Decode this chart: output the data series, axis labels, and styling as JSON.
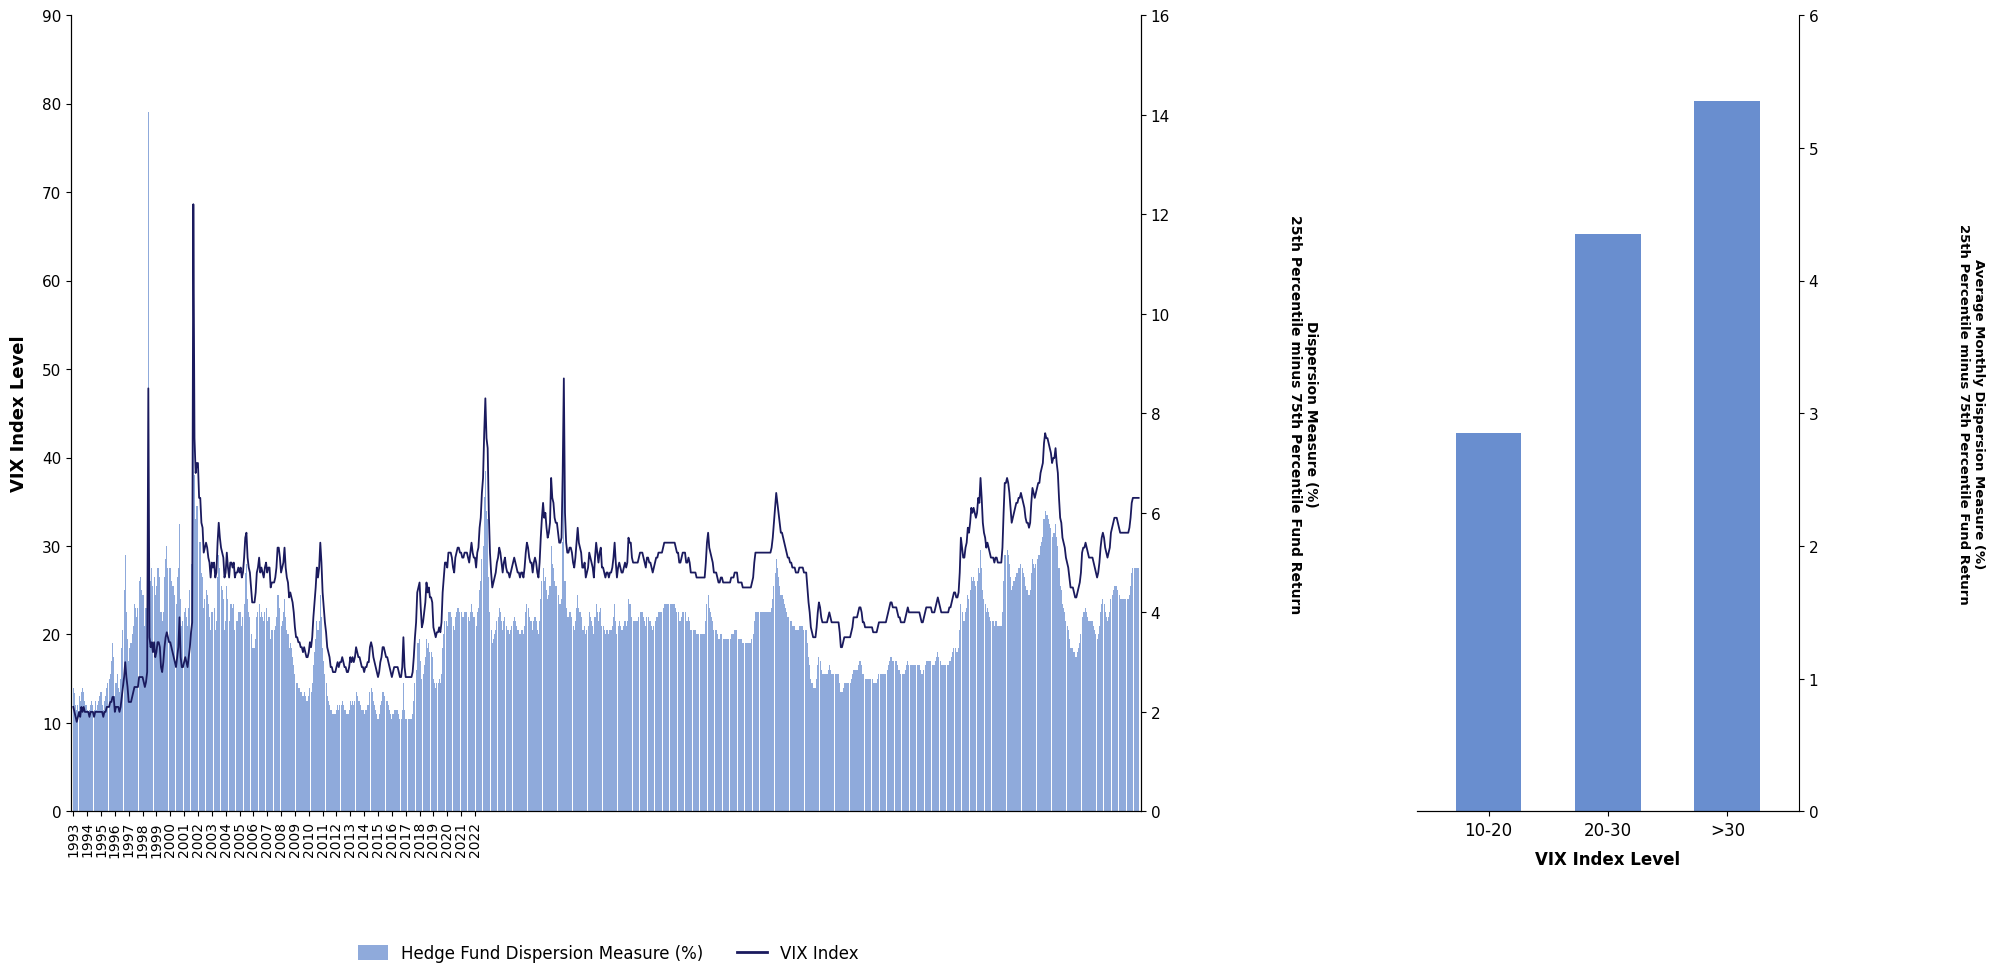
{
  "left_chart": {
    "vix_ylabel": "VIX Index Level",
    "disp_ylabel": "Dispersion Measure (%)\n25th Percentile minus 75th Percentile Fund Return",
    "vix_ylim": [
      0,
      90
    ],
    "vix_yticks": [
      0,
      10,
      20,
      30,
      40,
      50,
      60,
      70,
      80,
      90
    ],
    "disp_ylim": [
      0,
      16
    ],
    "disp_yticks": [
      0,
      2,
      4,
      6,
      8,
      10,
      12,
      14,
      16
    ],
    "bar_color": "#4472C4",
    "line_color": "#1a1a5e",
    "background_color": "#ffffff"
  },
  "right_chart": {
    "categories": [
      "10-20",
      "20-30",
      ">30"
    ],
    "values": [
      2.85,
      4.35,
      5.35
    ],
    "bar_color": "#4472C4",
    "xlabel": "VIX Index Level",
    "ylim": [
      0,
      6
    ],
    "yticks": [
      0,
      1,
      2,
      3,
      4,
      5,
      6
    ]
  },
  "legend": {
    "bar_label": "Hedge Fund Dispersion Measure (%)",
    "line_label": "VIX Index"
  },
  "vix_data": [
    13.9,
    13.4,
    12.0,
    11.5,
    12.0,
    13.0,
    12.5,
    13.5,
    14.0,
    13.5,
    12.5,
    12.0,
    11.5,
    11.0,
    11.5,
    12.0,
    12.5,
    12.0,
    11.5,
    12.5,
    11.5,
    12.0,
    12.5,
    13.0,
    13.5,
    12.0,
    11.5,
    12.5,
    13.0,
    14.0,
    14.5,
    15.0,
    15.5,
    17.0,
    19.0,
    17.5,
    13.0,
    14.5,
    15.5,
    14.0,
    13.5,
    15.0,
    18.5,
    20.5,
    25.0,
    29.0,
    22.5,
    19.5,
    17.0,
    18.5,
    19.0,
    20.0,
    21.0,
    23.5,
    23.0,
    22.0,
    23.0,
    26.0,
    26.5,
    25.0,
    24.5,
    24.5,
    21.0,
    23.0,
    26.0,
    79.0,
    28.5,
    26.0,
    27.5,
    25.5,
    26.5,
    24.5,
    25.5,
    27.5,
    27.5,
    26.5,
    22.5,
    21.5,
    22.5,
    26.5,
    28.5,
    30.0,
    27.5,
    27.5,
    27.5,
    26.0,
    25.5,
    25.5,
    24.5,
    23.5,
    26.5,
    27.5,
    32.5,
    24.0,
    21.0,
    21.5,
    22.5,
    23.0,
    22.0,
    21.0,
    23.0,
    25.0,
    28.0,
    30.0,
    64.0,
    38.0,
    33.0,
    34.5,
    34.5,
    30.5,
    30.5,
    27.0,
    26.5,
    23.0,
    24.0,
    25.0,
    24.5,
    23.5,
    22.0,
    20.5,
    22.5,
    22.5,
    23.0,
    20.5,
    21.5,
    26.5,
    29.0,
    27.5,
    25.5,
    25.0,
    24.0,
    20.5,
    21.5,
    25.5,
    24.0,
    21.5,
    23.5,
    23.5,
    23.0,
    23.5,
    20.5,
    21.5,
    21.5,
    22.5,
    22.5,
    22.5,
    21.0,
    22.0,
    23.5,
    27.0,
    28.0,
    24.0,
    22.5,
    22.0,
    20.0,
    18.5,
    18.5,
    18.5,
    19.5,
    22.0,
    22.5,
    23.5,
    22.0,
    22.5,
    22.0,
    21.5,
    22.5,
    23.0,
    21.5,
    22.0,
    22.0,
    19.5,
    20.5,
    20.5,
    20.5,
    21.0,
    22.0,
    24.5,
    24.5,
    23.0,
    21.0,
    21.5,
    22.5,
    24.0,
    22.0,
    20.5,
    20.0,
    18.5,
    19.0,
    18.5,
    17.5,
    16.5,
    15.5,
    14.5,
    14.5,
    14.0,
    14.0,
    13.5,
    13.5,
    13.0,
    13.5,
    13.0,
    12.5,
    12.5,
    13.0,
    14.0,
    13.5,
    14.5,
    16.5,
    18.0,
    19.5,
    21.5,
    20.5,
    21.5,
    24.5,
    22.0,
    18.5,
    17.0,
    15.5,
    14.5,
    13.0,
    12.5,
    12.0,
    11.5,
    11.5,
    11.0,
    11.0,
    11.0,
    11.5,
    12.0,
    11.5,
    12.0,
    12.0,
    12.5,
    12.0,
    11.5,
    11.5,
    11.0,
    11.0,
    11.5,
    12.5,
    12.0,
    12.5,
    12.0,
    12.5,
    13.5,
    13.0,
    12.5,
    12.5,
    12.0,
    11.5,
    11.5,
    11.0,
    11.5,
    11.5,
    12.0,
    12.0,
    13.5,
    14.0,
    13.5,
    12.5,
    12.0,
    11.5,
    11.0,
    10.5,
    11.0,
    12.0,
    12.5,
    13.5,
    13.5,
    13.0,
    12.5,
    12.5,
    12.0,
    11.5,
    11.0,
    10.5,
    11.0,
    11.5,
    11.5,
    11.5,
    11.5,
    11.0,
    10.5,
    10.5,
    11.5,
    14.5,
    11.5,
    10.5,
    10.5,
    10.5,
    10.5,
    10.5,
    10.5,
    11.0,
    12.5,
    14.5,
    16.0,
    19.0,
    19.0,
    19.5,
    17.0,
    15.0,
    15.5,
    16.5,
    17.5,
    19.5,
    18.5,
    19.0,
    18.0,
    18.0,
    17.5,
    15.0,
    14.5,
    14.0,
    14.5,
    14.5,
    15.0,
    14.5,
    15.5,
    18.5,
    20.0,
    21.5,
    21.5,
    21.0,
    22.5,
    22.5,
    22.5,
    22.0,
    21.0,
    20.5,
    22.0,
    22.5,
    23.0,
    23.0,
    22.5,
    22.5,
    22.0,
    22.0,
    22.5,
    22.5,
    22.5,
    22.0,
    21.5,
    22.5,
    23.5,
    22.5,
    22.0,
    22.0,
    21.0,
    22.5,
    23.0,
    25.0,
    26.0,
    28.5,
    30.0,
    35.5,
    38.5,
    34.0,
    33.0,
    26.5,
    22.5,
    20.5,
    19.0,
    19.5,
    20.0,
    20.5,
    21.5,
    22.0,
    23.0,
    22.5,
    21.5,
    20.5,
    21.5,
    22.0,
    21.0,
    20.5,
    20.5,
    20.0,
    20.5,
    21.0,
    21.5,
    22.0,
    21.5,
    21.0,
    20.5,
    20.5,
    20.0,
    20.5,
    20.5,
    20.0,
    21.0,
    22.5,
    23.5,
    23.0,
    22.0,
    21.5,
    21.5,
    20.5,
    21.5,
    22.0,
    21.5,
    20.5,
    20.0,
    21.5,
    24.0,
    26.0,
    27.5,
    26.0,
    26.5,
    25.0,
    24.0,
    24.5,
    25.5,
    30.0,
    28.0,
    27.5,
    26.0,
    25.5,
    25.5,
    24.5,
    23.5,
    23.5,
    24.0,
    30.5,
    40.0,
    26.0,
    23.0,
    22.0,
    22.0,
    22.5,
    22.5,
    22.0,
    21.0,
    20.5,
    21.5,
    23.0,
    24.5,
    23.0,
    22.5,
    22.0,
    20.5,
    20.5,
    21.0,
    20.0,
    20.5,
    21.0,
    22.5,
    22.0,
    21.5,
    21.0,
    20.0,
    22.0,
    23.5,
    22.5,
    21.5,
    22.5,
    23.0,
    21.0,
    21.0,
    20.5,
    20.0,
    20.5,
    20.5,
    20.0,
    20.5,
    20.5,
    21.0,
    22.0,
    23.5,
    21.5,
    20.0,
    21.0,
    21.5,
    21.0,
    20.5,
    20.5,
    21.0,
    21.5,
    21.0,
    21.5,
    24.0,
    23.5,
    23.5,
    22.0,
    21.5,
    21.5,
    21.5,
    21.5,
    21.5,
    22.0,
    22.5,
    22.5,
    22.5,
    22.0,
    21.5,
    21.0,
    22.0,
    22.0,
    21.5,
    21.5,
    21.0,
    20.5,
    21.0,
    21.5,
    22.0,
    22.0,
    22.5,
    22.5,
    22.5,
    22.5,
    23.0,
    23.5,
    23.5,
    23.5,
    23.5,
    23.5,
    23.5,
    23.5,
    23.5,
    23.5,
    23.5,
    23.0,
    22.5,
    22.5,
    21.5,
    21.5,
    22.0,
    22.5,
    22.5,
    22.5,
    21.5,
    21.5,
    22.0,
    21.5,
    20.5,
    20.5,
    20.5,
    20.5,
    20.5,
    20.0,
    20.0,
    20.0,
    20.0,
    20.0,
    20.0,
    20.0,
    20.0,
    21.5,
    23.5,
    24.5,
    23.0,
    22.5,
    22.0,
    21.5,
    20.5,
    20.5,
    20.5,
    20.0,
    19.5,
    19.5,
    20.0,
    20.0,
    19.5,
    19.5,
    19.5,
    19.5,
    19.5,
    19.5,
    19.5,
    20.0,
    20.0,
    20.0,
    20.5,
    20.5,
    20.5,
    19.5,
    19.5,
    19.5,
    19.5,
    19.0,
    19.0,
    19.0,
    19.0,
    19.0,
    19.0,
    19.0,
    19.0,
    19.5,
    20.0,
    21.5,
    22.5,
    22.5,
    22.5,
    22.5,
    22.5,
    22.5,
    22.5,
    22.5,
    22.5,
    22.5,
    22.5,
    22.5,
    22.5,
    22.5,
    23.0,
    24.0,
    25.5,
    27.0,
    28.5,
    27.5,
    26.5,
    25.5,
    24.5,
    24.5,
    24.0,
    23.5,
    23.0,
    22.5,
    22.0,
    22.0,
    21.5,
    21.5,
    21.0,
    21.0,
    21.0,
    20.5,
    20.5,
    20.5,
    21.0,
    21.0,
    21.0,
    21.0,
    20.5,
    20.5,
    20.5,
    19.0,
    17.5,
    16.5,
    15.0,
    14.5,
    14.0,
    14.0,
    14.0,
    15.0,
    16.5,
    17.5,
    17.0,
    16.0,
    15.5,
    15.5,
    15.5,
    15.5,
    15.5,
    16.0,
    16.5,
    16.0,
    15.5,
    15.5,
    15.5,
    15.5,
    15.5,
    15.5,
    15.5,
    14.5,
    13.5,
    13.5,
    14.0,
    14.5,
    14.5,
    14.5,
    14.5,
    14.5,
    14.5,
    15.0,
    15.5,
    16.0,
    16.0,
    16.0,
    16.0,
    16.5,
    17.0,
    17.0,
    16.5,
    15.5,
    15.5,
    15.0,
    15.0,
    15.0,
    15.0,
    15.0,
    15.0,
    15.0,
    14.5,
    14.5,
    14.5,
    14.5,
    15.0,
    15.5,
    15.5,
    15.5,
    15.5,
    15.5,
    15.5,
    15.5,
    16.0,
    16.5,
    17.0,
    17.5,
    17.5,
    17.0,
    17.0,
    17.0,
    17.0,
    16.5,
    16.0,
    16.0,
    15.5,
    15.5,
    15.5,
    15.5,
    16.0,
    16.5,
    17.0,
    16.5,
    16.5,
    16.5,
    16.5,
    16.5,
    16.5,
    16.5,
    16.5,
    16.5,
    16.5,
    16.0,
    15.5,
    15.5,
    16.0,
    16.5,
    17.0,
    17.0,
    17.0,
    17.0,
    17.0,
    16.5,
    16.5,
    16.5,
    17.0,
    17.5,
    18.0,
    17.5,
    17.0,
    16.5,
    16.5,
    16.5,
    16.5,
    16.5,
    16.5,
    16.5,
    17.0,
    17.0,
    17.5,
    18.0,
    18.5,
    18.5,
    18.0,
    18.0,
    18.5,
    20.5,
    23.5,
    22.5,
    21.5,
    21.5,
    22.5,
    23.0,
    24.5,
    24.0,
    25.0,
    26.5,
    26.0,
    26.5,
    26.0,
    25.5,
    26.0,
    27.5,
    27.0,
    29.5,
    27.5,
    25.0,
    24.0,
    23.5,
    22.5,
    23.0,
    22.5,
    22.0,
    21.5,
    21.5,
    21.5,
    21.0,
    21.5,
    21.5,
    21.0,
    21.0,
    21.0,
    21.0,
    22.5,
    26.0,
    29.0,
    29.0,
    29.5,
    29.0,
    28.0,
    26.5,
    25.0,
    25.5,
    26.0,
    26.5,
    27.0,
    27.0,
    27.5,
    27.5,
    28.0,
    27.5,
    27.0,
    26.5,
    25.5,
    25.0,
    25.0,
    24.5,
    25.0,
    27.0,
    28.5,
    28.0,
    27.5,
    28.0,
    28.5,
    29.0,
    29.0,
    30.0,
    30.5,
    31.0,
    33.0,
    34.0,
    33.5,
    33.5,
    33.0,
    32.5,
    32.0,
    31.0,
    31.5,
    31.5,
    32.5,
    31.0,
    30.0,
    27.5,
    25.5,
    25.0,
    23.5,
    23.0,
    22.5,
    21.5,
    21.0,
    20.5,
    19.5,
    18.5,
    18.5,
    18.5,
    18.0,
    17.5,
    17.5,
    18.0,
    18.5,
    19.0,
    20.0,
    22.0,
    22.5,
    22.5,
    23.0,
    22.5,
    22.0,
    21.5,
    21.5,
    21.5,
    21.5,
    21.0,
    20.5,
    20.0,
    19.5,
    20.0,
    21.0,
    22.5,
    23.5,
    24.0,
    23.5,
    22.5,
    22.0,
    21.5,
    22.0,
    22.5,
    24.0,
    24.5,
    25.0,
    25.5,
    25.5,
    25.5,
    25.0,
    24.5,
    24.0,
    24.0,
    24.0,
    24.0,
    24.0,
    24.0,
    24.0,
    24.0,
    24.5,
    25.5,
    27.0,
    27.5,
    27.5,
    27.5,
    27.5,
    27.5,
    27.5
  ],
  "disp_data": [
    2.1,
    2.0,
    1.9,
    1.8,
    1.9,
    2.0,
    1.9,
    2.1,
    2.0,
    2.1,
    2.0,
    2.0,
    2.0,
    2.0,
    1.9,
    2.0,
    2.0,
    2.0,
    1.9,
    2.0,
    2.0,
    2.0,
    2.0,
    2.0,
    2.0,
    2.0,
    1.9,
    2.0,
    2.0,
    2.1,
    2.1,
    2.1,
    2.2,
    2.2,
    2.3,
    2.3,
    2.0,
    2.1,
    2.1,
    2.1,
    2.0,
    2.1,
    2.3,
    2.5,
    2.7,
    3.0,
    2.7,
    2.5,
    2.2,
    2.2,
    2.2,
    2.3,
    2.4,
    2.5,
    2.5,
    2.5,
    2.5,
    2.7,
    2.7,
    2.7,
    2.7,
    2.6,
    2.5,
    2.6,
    2.8,
    8.5,
    3.5,
    3.3,
    3.4,
    3.2,
    3.4,
    3.1,
    3.2,
    3.4,
    3.4,
    3.3,
    2.9,
    2.8,
    3.0,
    3.3,
    3.5,
    3.6,
    3.5,
    3.4,
    3.4,
    3.3,
    3.2,
    3.1,
    3.0,
    2.9,
    3.1,
    3.3,
    3.9,
    3.1,
    2.9,
    2.9,
    3.0,
    3.1,
    3.0,
    2.9,
    3.1,
    3.3,
    3.6,
    3.8,
    12.2,
    7.5,
    6.8,
    7.0,
    7.0,
    6.3,
    6.3,
    5.8,
    5.7,
    5.2,
    5.3,
    5.4,
    5.3,
    5.1,
    5.0,
    4.7,
    5.0,
    4.9,
    5.0,
    4.7,
    4.8,
    5.4,
    5.8,
    5.5,
    5.3,
    5.2,
    5.1,
    4.7,
    4.8,
    5.2,
    4.9,
    4.7,
    5.0,
    5.0,
    4.9,
    5.0,
    4.7,
    4.8,
    4.8,
    4.9,
    4.8,
    4.9,
    4.7,
    4.8,
    5.1,
    5.5,
    5.6,
    5.1,
    4.9,
    4.8,
    4.5,
    4.2,
    4.2,
    4.2,
    4.4,
    4.8,
    4.9,
    5.1,
    4.8,
    4.9,
    4.8,
    4.7,
    4.9,
    5.0,
    4.8,
    4.9,
    4.9,
    4.5,
    4.6,
    4.6,
    4.6,
    4.7,
    4.9,
    5.3,
    5.3,
    5.1,
    4.8,
    4.9,
    5.0,
    5.3,
    4.9,
    4.7,
    4.6,
    4.3,
    4.4,
    4.3,
    4.2,
    4.0,
    3.7,
    3.5,
    3.5,
    3.4,
    3.4,
    3.3,
    3.3,
    3.2,
    3.3,
    3.2,
    3.1,
    3.1,
    3.2,
    3.4,
    3.3,
    3.5,
    3.9,
    4.2,
    4.5,
    4.9,
    4.7,
    4.9,
    5.4,
    5.0,
    4.4,
    4.1,
    3.8,
    3.6,
    3.3,
    3.2,
    3.1,
    2.9,
    2.9,
    2.8,
    2.8,
    2.8,
    2.9,
    3.0,
    2.9,
    3.0,
    3.0,
    3.1,
    3.0,
    2.9,
    2.9,
    2.8,
    2.8,
    2.9,
    3.1,
    3.0,
    3.1,
    3.0,
    3.1,
    3.3,
    3.2,
    3.1,
    3.1,
    3.0,
    2.9,
    2.9,
    2.8,
    2.9,
    2.9,
    3.0,
    3.0,
    3.3,
    3.4,
    3.3,
    3.1,
    3.0,
    2.9,
    2.8,
    2.7,
    2.8,
    3.0,
    3.1,
    3.3,
    3.3,
    3.2,
    3.1,
    3.1,
    3.0,
    2.9,
    2.8,
    2.7,
    2.8,
    2.9,
    2.9,
    2.9,
    2.9,
    2.8,
    2.7,
    2.7,
    2.9,
    3.5,
    2.9,
    2.7,
    2.7,
    2.7,
    2.7,
    2.7,
    2.7,
    2.8,
    3.1,
    3.5,
    3.8,
    4.4,
    4.5,
    4.6,
    4.1,
    3.7,
    3.8,
    4.0,
    4.2,
    4.6,
    4.4,
    4.5,
    4.3,
    4.3,
    4.2,
    3.7,
    3.6,
    3.5,
    3.6,
    3.6,
    3.7,
    3.6,
    3.8,
    4.4,
    4.7,
    5.0,
    5.0,
    4.9,
    5.2,
    5.2,
    5.2,
    5.1,
    4.9,
    4.8,
    5.1,
    5.2,
    5.3,
    5.3,
    5.2,
    5.2,
    5.1,
    5.1,
    5.2,
    5.2,
    5.2,
    5.1,
    5.0,
    5.2,
    5.4,
    5.2,
    5.1,
    5.1,
    4.9,
    5.2,
    5.3,
    5.7,
    5.9,
    6.4,
    6.7,
    7.6,
    8.3,
    7.5,
    7.3,
    6.0,
    5.2,
    4.8,
    4.5,
    4.6,
    4.7,
    4.8,
    5.0,
    5.1,
    5.3,
    5.2,
    5.0,
    4.8,
    5.0,
    5.1,
    4.9,
    4.8,
    4.8,
    4.7,
    4.8,
    4.9,
    5.0,
    5.1,
    5.0,
    4.9,
    4.8,
    4.8,
    4.7,
    4.8,
    4.8,
    4.7,
    4.9,
    5.2,
    5.4,
    5.3,
    5.1,
    5.0,
    5.0,
    4.8,
    5.0,
    5.1,
    5.0,
    4.8,
    4.7,
    5.0,
    5.5,
    5.9,
    6.2,
    5.9,
    6.0,
    5.7,
    5.5,
    5.6,
    5.8,
    6.7,
    6.3,
    6.2,
    5.9,
    5.8,
    5.8,
    5.6,
    5.4,
    5.4,
    5.5,
    6.8,
    8.7,
    6.0,
    5.4,
    5.2,
    5.2,
    5.3,
    5.3,
    5.2,
    5.0,
    4.9,
    5.1,
    5.4,
    5.7,
    5.4,
    5.3,
    5.2,
    4.9,
    4.9,
    5.0,
    4.7,
    4.8,
    4.9,
    5.2,
    5.1,
    5.0,
    4.9,
    4.7,
    5.1,
    5.4,
    5.2,
    5.0,
    5.2,
    5.3,
    4.9,
    4.9,
    4.8,
    4.7,
    4.8,
    4.8,
    4.7,
    4.8,
    4.8,
    4.9,
    5.1,
    5.4,
    5.0,
    4.7,
    4.9,
    5.0,
    4.9,
    4.8,
    4.8,
    4.9,
    5.0,
    4.9,
    5.0,
    5.5,
    5.4,
    5.4,
    5.1,
    5.0,
    5.0,
    5.0,
    5.0,
    5.0,
    5.1,
    5.2,
    5.2,
    5.2,
    5.1,
    5.0,
    4.9,
    5.1,
    5.1,
    5.0,
    5.0,
    4.9,
    4.8,
    4.9,
    5.0,
    5.1,
    5.1,
    5.2,
    5.2,
    5.2,
    5.2,
    5.3,
    5.4,
    5.4,
    5.4,
    5.4,
    5.4,
    5.4,
    5.4,
    5.4,
    5.4,
    5.4,
    5.3,
    5.2,
    5.2,
    5.0,
    5.0,
    5.1,
    5.2,
    5.2,
    5.2,
    5.0,
    5.0,
    5.1,
    5.0,
    4.8,
    4.8,
    4.8,
    4.8,
    4.8,
    4.7,
    4.7,
    4.7,
    4.7,
    4.7,
    4.7,
    4.7,
    4.7,
    5.0,
    5.4,
    5.6,
    5.3,
    5.2,
    5.1,
    5.0,
    4.8,
    4.8,
    4.8,
    4.7,
    4.6,
    4.6,
    4.7,
    4.7,
    4.6,
    4.6,
    4.6,
    4.6,
    4.6,
    4.6,
    4.6,
    4.7,
    4.7,
    4.7,
    4.8,
    4.8,
    4.8,
    4.6,
    4.6,
    4.6,
    4.6,
    4.5,
    4.5,
    4.5,
    4.5,
    4.5,
    4.5,
    4.5,
    4.5,
    4.6,
    4.7,
    5.0,
    5.2,
    5.2,
    5.2,
    5.2,
    5.2,
    5.2,
    5.2,
    5.2,
    5.2,
    5.2,
    5.2,
    5.2,
    5.2,
    5.2,
    5.3,
    5.5,
    5.8,
    6.1,
    6.4,
    6.2,
    6.0,
    5.8,
    5.6,
    5.6,
    5.5,
    5.4,
    5.3,
    5.2,
    5.1,
    5.1,
    5.0,
    5.0,
    4.9,
    4.9,
    4.9,
    4.8,
    4.8,
    4.8,
    4.9,
    4.9,
    4.9,
    4.9,
    4.8,
    4.8,
    4.8,
    4.5,
    4.2,
    4.0,
    3.7,
    3.6,
    3.5,
    3.5,
    3.5,
    3.7,
    4.0,
    4.2,
    4.1,
    3.9,
    3.8,
    3.8,
    3.8,
    3.8,
    3.8,
    3.9,
    4.0,
    3.9,
    3.8,
    3.8,
    3.8,
    3.8,
    3.8,
    3.8,
    3.8,
    3.6,
    3.3,
    3.3,
    3.4,
    3.5,
    3.5,
    3.5,
    3.5,
    3.5,
    3.5,
    3.6,
    3.7,
    3.9,
    3.9,
    3.9,
    3.9,
    4.0,
    4.1,
    4.1,
    4.0,
    3.8,
    3.8,
    3.7,
    3.7,
    3.7,
    3.7,
    3.7,
    3.7,
    3.7,
    3.6,
    3.6,
    3.6,
    3.6,
    3.7,
    3.8,
    3.8,
    3.8,
    3.8,
    3.8,
    3.8,
    3.8,
    3.9,
    4.0,
    4.1,
    4.2,
    4.2,
    4.1,
    4.1,
    4.1,
    4.1,
    4.0,
    3.9,
    3.9,
    3.8,
    3.8,
    3.8,
    3.8,
    3.9,
    4.0,
    4.1,
    4.0,
    4.0,
    4.0,
    4.0,
    4.0,
    4.0,
    4.0,
    4.0,
    4.0,
    4.0,
    3.9,
    3.8,
    3.8,
    3.9,
    4.0,
    4.1,
    4.1,
    4.1,
    4.1,
    4.1,
    4.0,
    4.0,
    4.0,
    4.1,
    4.2,
    4.3,
    4.2,
    4.1,
    4.0,
    4.0,
    4.0,
    4.0,
    4.0,
    4.0,
    4.0,
    4.1,
    4.1,
    4.2,
    4.3,
    4.4,
    4.4,
    4.3,
    4.3,
    4.4,
    4.8,
    5.5,
    5.3,
    5.1,
    5.1,
    5.3,
    5.4,
    5.7,
    5.6,
    5.8,
    6.1,
    6.0,
    6.1,
    6.0,
    5.9,
    6.0,
    6.3,
    6.2,
    6.7,
    6.3,
    5.8,
    5.6,
    5.5,
    5.3,
    5.4,
    5.3,
    5.2,
    5.1,
    5.1,
    5.1,
    5.0,
    5.1,
    5.1,
    5.0,
    5.0,
    5.0,
    5.0,
    5.3,
    6.0,
    6.6,
    6.6,
    6.7,
    6.6,
    6.4,
    6.1,
    5.8,
    5.9,
    6.0,
    6.1,
    6.2,
    6.2,
    6.3,
    6.3,
    6.4,
    6.3,
    6.2,
    6.1,
    5.9,
    5.8,
    5.8,
    5.7,
    5.8,
    6.2,
    6.5,
    6.4,
    6.3,
    6.4,
    6.5,
    6.6,
    6.6,
    6.8,
    6.9,
    7.0,
    7.4,
    7.6,
    7.5,
    7.5,
    7.4,
    7.3,
    7.2,
    7.0,
    7.1,
    7.1,
    7.3,
    7.0,
    6.8,
    6.3,
    5.9,
    5.8,
    5.5,
    5.4,
    5.3,
    5.1,
    5.0,
    4.9,
    4.7,
    4.5,
    4.5,
    4.5,
    4.4,
    4.3,
    4.3,
    4.4,
    4.5,
    4.6,
    4.8,
    5.2,
    5.3,
    5.3,
    5.4,
    5.3,
    5.2,
    5.1,
    5.1,
    5.1,
    5.1,
    5.0,
    4.9,
    4.8,
    4.7,
    4.8,
    5.0,
    5.3,
    5.5,
    5.6,
    5.5,
    5.3,
    5.2,
    5.1,
    5.2,
    5.3,
    5.6,
    5.7,
    5.8,
    5.9,
    5.9,
    5.9,
    5.8,
    5.7,
    5.6,
    5.6,
    5.6,
    5.6,
    5.6,
    5.6,
    5.6,
    5.6,
    5.7,
    5.9,
    6.2,
    6.3,
    6.3,
    6.3,
    6.3,
    6.3,
    6.3
  ],
  "xtick_years": [
    "1993",
    "1994",
    "1995",
    "1996",
    "1997",
    "1998",
    "1999",
    "2000",
    "2001",
    "2002",
    "2003",
    "2004",
    "2005",
    "2006",
    "2007",
    "2008",
    "2009",
    "2010",
    "2011",
    "2012",
    "2013",
    "2014",
    "2015",
    "2016",
    "2017",
    "2018",
    "2019",
    "2020",
    "2021",
    "2022"
  ]
}
